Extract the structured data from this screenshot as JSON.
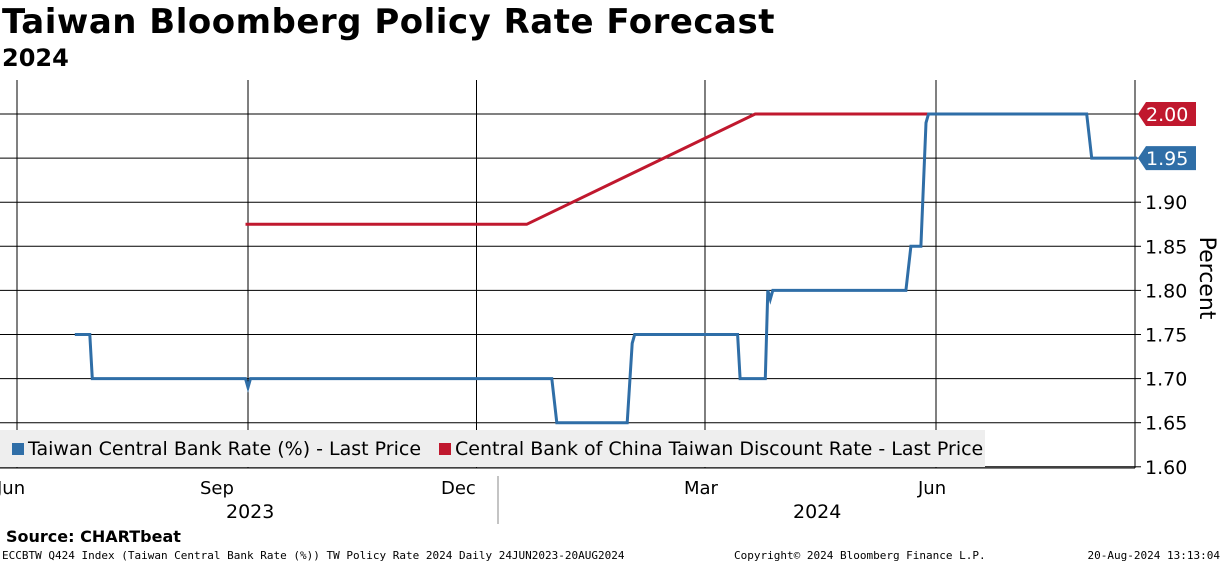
{
  "header": {
    "title": "Taiwan Bloomberg Policy Rate Forecast",
    "subtitle": "2024"
  },
  "chart_data": {
    "type": "line",
    "ylabel": "Percent",
    "ylim": [
      1.58,
      2.04
    ],
    "y_ticks": [
      "1.60",
      "1.65",
      "1.70",
      "1.75",
      "1.80",
      "1.85",
      "1.90",
      "1.95",
      "2.00"
    ],
    "x_month_labels": [
      "Jun",
      "Sep",
      "Dec",
      "Mar",
      "Jun"
    ],
    "x_year_labels": [
      "2023",
      "2024"
    ],
    "grid": true,
    "series": [
      {
        "name": "Taiwan Central Bank Rate (%) - Last Price",
        "color": "#2f6ea7",
        "points": [
          [
            "2023-06-24",
            1.75
          ],
          [
            "2023-06-30",
            1.75
          ],
          [
            "2023-07-01",
            1.7
          ],
          [
            "2023-08-31",
            1.7
          ],
          [
            "2023-09-01",
            1.69
          ],
          [
            "2023-09-02",
            1.7
          ],
          [
            "2023-12-31",
            1.7
          ],
          [
            "2024-01-02",
            1.65
          ],
          [
            "2024-01-30",
            1.65
          ],
          [
            "2024-02-01",
            1.74
          ],
          [
            "2024-02-02",
            1.75
          ],
          [
            "2024-03-14",
            1.75
          ],
          [
            "2024-03-15",
            1.7
          ],
          [
            "2024-03-25",
            1.7
          ],
          [
            "2024-03-26",
            1.8
          ],
          [
            "2024-03-27",
            1.79
          ],
          [
            "2024-03-28",
            1.8
          ],
          [
            "2024-05-20",
            1.8
          ],
          [
            "2024-05-22",
            1.85
          ],
          [
            "2024-05-26",
            1.85
          ],
          [
            "2024-05-28",
            1.99
          ],
          [
            "2024-05-29",
            2.0
          ],
          [
            "2024-07-31",
            2.0
          ],
          [
            "2024-08-02",
            1.95
          ],
          [
            "2024-08-20",
            1.95
          ]
        ],
        "last_value": "1.95"
      },
      {
        "name": "Central Bank of China Taiwan Discount Rate - Last Price",
        "color": "#c0182e",
        "points": [
          [
            "2023-08-31",
            1.875
          ],
          [
            "2023-12-21",
            1.875
          ],
          [
            "2024-03-21",
            2.0
          ],
          [
            "2024-05-31",
            2.0
          ]
        ],
        "last_value": "2.00"
      }
    ]
  },
  "footer": {
    "source": "Source:  CHARTbeat",
    "left": "ECCBTW Q424 Index (Taiwan Central Bank Rate (%)) TW Policy Rate 2024  Daily 24JUN2023-20AUG2024",
    "middle": "Copyright© 2024 Bloomberg Finance L.P.",
    "right": "20-Aug-2024 13:13:04"
  }
}
